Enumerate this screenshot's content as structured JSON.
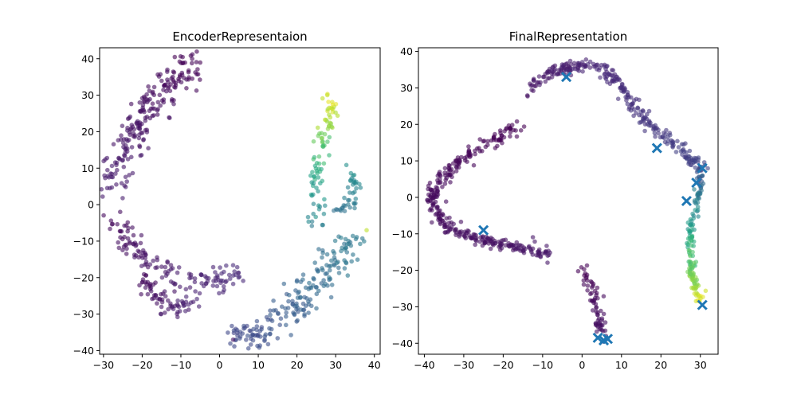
{
  "chart_data": [
    {
      "type": "scatter",
      "title": "EncoderRepresentaion",
      "xlabel": "",
      "ylabel": "",
      "xlim": [
        -31,
        41.5
      ],
      "ylim": [
        -41,
        43
      ],
      "xticks": [
        -30,
        -20,
        -10,
        0,
        10,
        20,
        30,
        40
      ],
      "yticks": [
        40,
        30,
        20,
        10,
        0,
        -10,
        -20,
        -30,
        -40
      ],
      "grid": false,
      "colormap": "viridis",
      "point_alpha": 0.6,
      "series": [
        {
          "clusters": [
            {
              "path": [
                [
                  -5,
                  39
                ],
                [
                  -10,
                  36
                ],
                [
                  -15,
                  30
                ],
                [
                  -20,
                  23
                ],
                [
                  -25,
                  15
                ],
                [
                  -28,
                  5
                ]
              ],
              "spread": 2.2,
              "count": 220,
              "color_range": [
                0.0,
                0.08
              ]
            },
            {
              "path": [
                [
                  -27,
                  -4
                ],
                [
                  -23,
                  -11
                ],
                [
                  -17,
                  -17
                ],
                [
                  -9,
                  -21
                ],
                [
                  0,
                  -21
                ],
                [
                  5,
                  -18
                ]
              ],
              "spread": 1.8,
              "count": 140,
              "color_range": [
                0.02,
                0.12
              ]
            },
            {
              "path": [
                [
                  -20,
                  -20
                ],
                [
                  -16,
                  -26
                ],
                [
                  -11,
                  -29
                ],
                [
                  -6,
                  -26
                ]
              ],
              "spread": 1.3,
              "count": 70,
              "color_range": [
                0.02,
                0.1
              ]
            },
            {
              "path": [
                [
                  4,
                  -36
                ],
                [
                  10,
                  -35
                ],
                [
                  18,
                  -30
                ],
                [
                  24,
                  -22
                ],
                [
                  30,
                  -15
                ],
                [
                  35,
                  -10
                ]
              ],
              "spread": 2.2,
              "count": 200,
              "color_range": [
                0.2,
                0.42
              ]
            },
            {
              "path": [
                [
                  25,
                  -5
                ],
                [
                  25,
                  3
                ],
                [
                  25,
                  11
                ],
                [
                  27,
                  17
                ],
                [
                  28,
                  23
                ],
                [
                  29,
                  29
                ]
              ],
              "spread": 1.2,
              "count": 90,
              "color_range": [
                0.42,
                0.95
              ]
            },
            {
              "path": [
                [
                  30,
                  -3
                ],
                [
                  33,
                  0
                ],
                [
                  35,
                  5
                ],
                [
                  34,
                  10
                ]
              ],
              "spread": 1.0,
              "count": 40,
              "color_range": [
                0.35,
                0.5
              ]
            }
          ],
          "extra_points": [
            [
              38,
              -7,
              0.9
            ],
            [
              3.5,
              -37,
              0.05
            ]
          ]
        }
      ]
    },
    {
      "type": "scatter",
      "title": "FinalRepresentation",
      "xlabel": "",
      "ylabel": "",
      "xlim": [
        -41.5,
        34.5
      ],
      "ylim": [
        -43,
        41
      ],
      "xticks": [
        -40,
        -30,
        -20,
        -10,
        0,
        10,
        20,
        30
      ],
      "yticks": [
        40,
        30,
        20,
        10,
        0,
        -10,
        -20,
        -30,
        -40
      ],
      "grid": false,
      "colormap": "viridis",
      "point_alpha": 0.6,
      "series": [
        {
          "clusters": [
            {
              "path": [
                [
                  -16,
                  20
                ],
                [
                  -25,
                  14
                ],
                [
                  -32,
                  9
                ],
                [
                  -37,
                  3
                ],
                [
                  -38,
                  -2
                ],
                [
                  -35,
                  -8
                ],
                [
                  -28,
                  -11
                ],
                [
                  -21,
                  -13
                ],
                [
                  -14,
                  -14
                ],
                [
                  -8,
                  -16
                ]
              ],
              "spread": 0.9,
              "count": 330,
              "color_range": [
                0.0,
                0.06
              ]
            },
            {
              "path": [
                [
                  -14,
                  28
                ],
                [
                  -10,
                  33
                ],
                [
                  -5,
                  35
                ],
                [
                  0,
                  36
                ],
                [
                  5,
                  35.5
                ],
                [
                  9,
                  32
                ],
                [
                  12,
                  26
                ],
                [
                  16,
                  21
                ],
                [
                  21,
                  17
                ],
                [
                  26,
                  12
                ],
                [
                  30,
                  8
                ]
              ],
              "spread": 0.9,
              "count": 280,
              "color_range": [
                0.05,
                0.2
              ]
            },
            {
              "path": [
                [
                  30,
                  8
                ],
                [
                  30,
                  3
                ],
                [
                  28.5,
                  -3
                ],
                [
                  27.5,
                  -10
                ],
                [
                  27.5,
                  -17
                ],
                [
                  28.5,
                  -23
                ],
                [
                  30,
                  -28
                ]
              ],
              "spread": 0.6,
              "count": 150,
              "color_range": [
                0.22,
                0.95
              ]
            },
            {
              "path": [
                [
                  0,
                  -20
                ],
                [
                  2,
                  -24
                ],
                [
                  3.5,
                  -29
                ],
                [
                  4.5,
                  -34
                ],
                [
                  5,
                  -39
                ]
              ],
              "spread": 0.8,
              "count": 70,
              "color_range": [
                0.0,
                0.05
              ]
            }
          ]
        },
        {
          "marker": "x",
          "color": "#1f77b4",
          "points": [
            [
              -4,
              33
            ],
            [
              19,
              13.5
            ],
            [
              30.5,
              8
            ],
            [
              29,
              4
            ],
            [
              26.5,
              -1
            ],
            [
              -25,
              -9
            ],
            [
              4,
              -38.5
            ],
            [
              5.5,
              -39.2
            ],
            [
              6.5,
              -38.8
            ],
            [
              30.5,
              -29.5
            ]
          ]
        }
      ]
    }
  ]
}
